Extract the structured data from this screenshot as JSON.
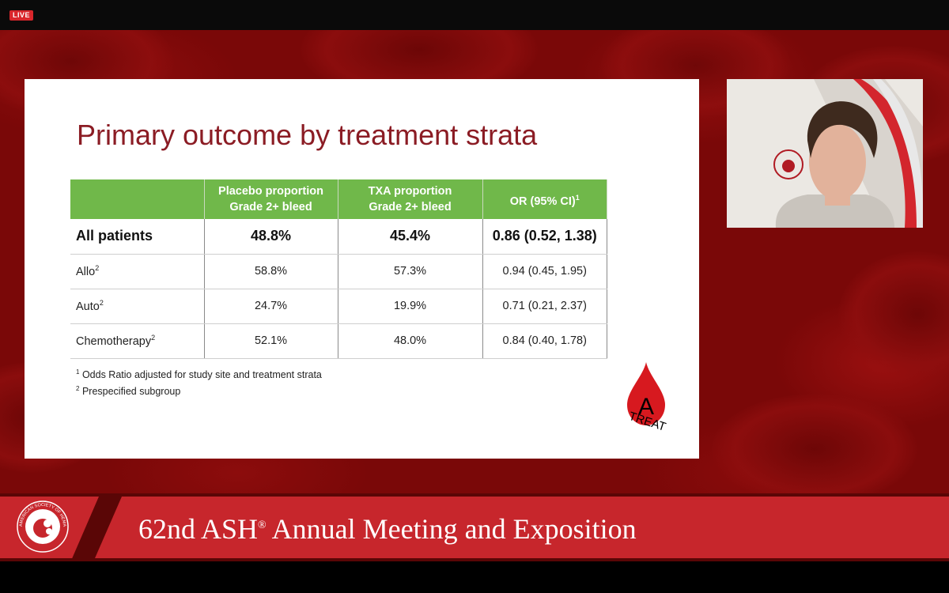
{
  "stream": {
    "live_label": "LIVE"
  },
  "slide": {
    "title": "Primary outcome by treatment strata",
    "table": {
      "headers": [
        {
          "line1": "",
          "line2": ""
        },
        {
          "line1": "Placebo proportion",
          "line2": "Grade 2+ bleed"
        },
        {
          "line1": "TXA proportion",
          "line2": "Grade 2+ bleed"
        },
        {
          "line1": "OR (95% CI)",
          "line2": "",
          "sup": "1"
        }
      ],
      "rows": [
        {
          "label": "All patients",
          "sup": "",
          "placebo": "48.8%",
          "txa": "45.4%",
          "or": "0.86 (0.52, 1.38)"
        },
        {
          "label": "Allo",
          "sup": "2",
          "placebo": "58.8%",
          "txa": "57.3%",
          "or": "0.94 (0.45, 1.95)"
        },
        {
          "label": "Auto",
          "sup": "2",
          "placebo": "24.7%",
          "txa": "19.9%",
          "or": "0.71 (0.21, 2.37)"
        },
        {
          "label": "Chemotherapy",
          "sup": "2",
          "placebo": "52.1%",
          "txa": "48.0%",
          "or": "0.84 (0.40, 1.78)"
        }
      ]
    },
    "footnotes": [
      {
        "mark": "1",
        "text": "Odds Ratio adjusted for study site and treatment strata"
      },
      {
        "mark": "2",
        "text": "Prespecified subgroup"
      }
    ],
    "logo": {
      "letter": "A",
      "word": "TREAT",
      "color": "#d7191f"
    }
  },
  "banner": {
    "text_before": "62nd ASH",
    "registered": "®",
    "text_after": " Annual Meeting and Exposition",
    "seal_text": "AMERICAN SOCIETY OF HEMATOLOGY"
  },
  "colors": {
    "header_green": "#70b84a",
    "title_red": "#8b1c24",
    "banner_red": "#c7262c",
    "stage_red": "#7a0808"
  }
}
